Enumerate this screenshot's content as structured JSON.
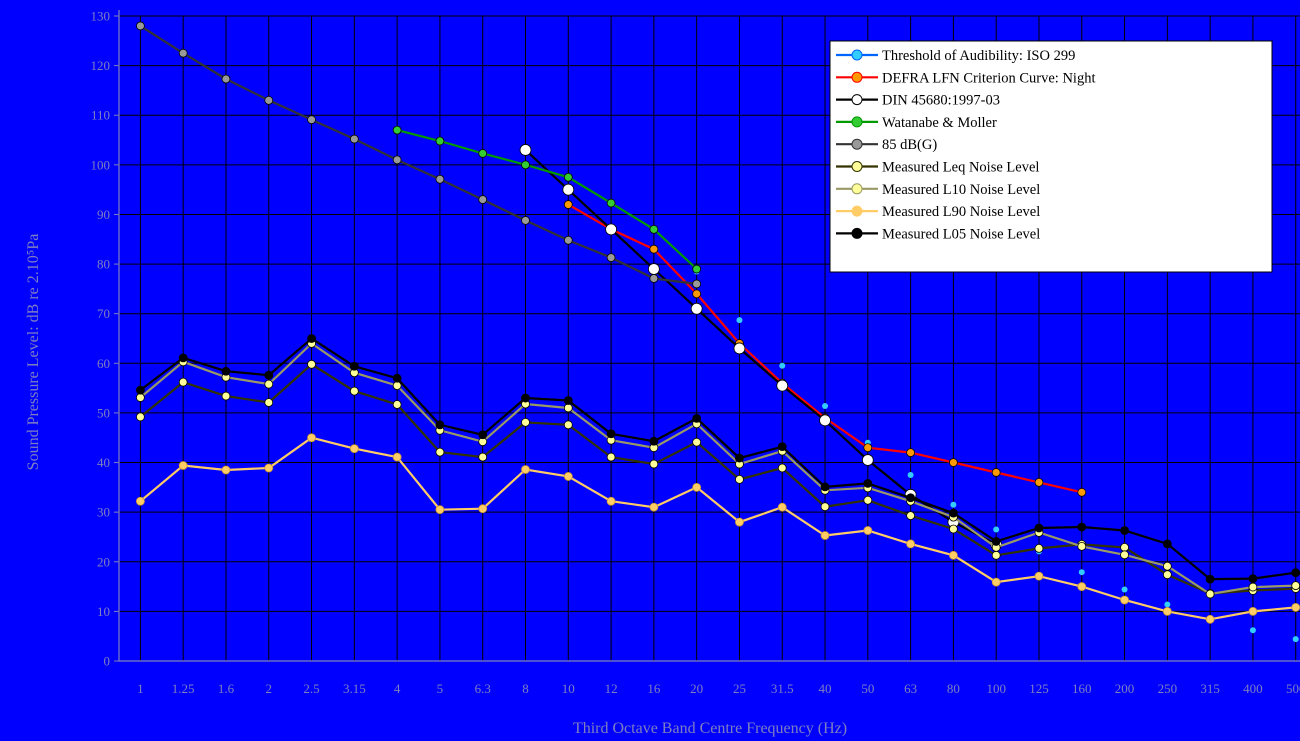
{
  "chart_data": {
    "type": "line",
    "title": "",
    "xlabel": "Third Octave Band Centre Frequency (Hz)",
    "ylabel": "Sound Pressure Level: dB re 2.10⁵Pa",
    "ylim": [
      0,
      130
    ],
    "yticks": [
      "0",
      "10",
      "20",
      "30",
      "40",
      "50",
      "60",
      "70",
      "80",
      "90",
      "100",
      "110",
      "120",
      "130"
    ],
    "categories": [
      "1",
      "1.25",
      "1.6",
      "2",
      "2.5",
      "3.15",
      "4",
      "5",
      "6.3",
      "8",
      "10",
      "12",
      "16",
      "20",
      "25",
      "31.5",
      "40",
      "50",
      "63",
      "80",
      "100",
      "125",
      "160",
      "200",
      "250",
      "315",
      "400",
      "500"
    ],
    "grid": true,
    "legend_position": "top-right",
    "series": [
      {
        "name": "Threshold of Audibility: ISO 299",
        "color": "#33ccff",
        "line": "#0066ff",
        "marker": "#33ccff",
        "show_line": false,
        "values": [
          null,
          null,
          null,
          null,
          null,
          null,
          null,
          null,
          null,
          null,
          null,
          null,
          null,
          78.5,
          68.7,
          59.5,
          51.4,
          44.0,
          37.5,
          31.5,
          26.5,
          22.1,
          17.9,
          14.4,
          11.4,
          8.6,
          6.2,
          4.4
        ]
      },
      {
        "name": "DEFRA LFN Criterion Curve: Night",
        "color": "#ff0000",
        "line": "#ff0000",
        "marker": "#ff9900",
        "values": [
          null,
          null,
          null,
          null,
          null,
          null,
          null,
          null,
          null,
          null,
          92,
          87,
          83,
          74,
          64,
          56,
          49,
          43,
          42,
          40,
          38,
          36,
          34,
          null,
          null,
          null,
          null,
          null
        ]
      },
      {
        "name": "DIN 45680:1997-03",
        "color": "#000000",
        "line": "#000000",
        "marker": "#ffffff",
        "marker_size": 5.5,
        "values": [
          null,
          null,
          null,
          null,
          null,
          null,
          null,
          null,
          null,
          103,
          95,
          87,
          79,
          71,
          63,
          55.5,
          48.5,
          40.5,
          33.5,
          28,
          23.5,
          null,
          null,
          null,
          null,
          null,
          null,
          null
        ]
      },
      {
        "name": "Watanabe & Moller",
        "color": "#009900",
        "line": "#009900",
        "marker": "#33cc33",
        "values": [
          null,
          null,
          null,
          null,
          null,
          null,
          107,
          104.8,
          102.3,
          100,
          97.5,
          92.3,
          87,
          79,
          null,
          null,
          null,
          null,
          null,
          null,
          null,
          null,
          null,
          null,
          null,
          null,
          null,
          null
        ]
      },
      {
        "name": "85 dB(G)",
        "color": "#333333",
        "line": "#333333",
        "marker": "#999999",
        "values": [
          128,
          122.5,
          117.3,
          113,
          109.1,
          105.2,
          101,
          97.1,
          93,
          88.8,
          84.8,
          81.3,
          77.1,
          76,
          null,
          null,
          null,
          null,
          null,
          null,
          null,
          null,
          null,
          null,
          null,
          null,
          null,
          null
        ]
      },
      {
        "name": "Measured Leq Noise Level",
        "color": "#333300",
        "line": "#333300",
        "marker": "#ffff99",
        "values": [
          49.2,
          56.2,
          53.4,
          52.1,
          59.8,
          54.4,
          51.7,
          42.1,
          41.1,
          48.1,
          47.6,
          41.1,
          39.7,
          44.1,
          36.6,
          38.9,
          31.1,
          32.4,
          29.3,
          26.6,
          21.3,
          22.7,
          23.5,
          22.9,
          17.4,
          13.6,
          14.2,
          14.6
        ]
      },
      {
        "name": "Measured L10 Noise Level",
        "color": "#999966",
        "line": "#999966",
        "marker": "#ffff99",
        "values": [
          53.1,
          60.3,
          57.2,
          55.8,
          64.0,
          58.1,
          55.5,
          46.5,
          44.2,
          51.8,
          51.0,
          44.5,
          43.0,
          47.8,
          39.7,
          42.3,
          34.4,
          34.9,
          32.2,
          29.0,
          22.9,
          25.9,
          23.1,
          21.4,
          19.1,
          13.5,
          14.9,
          15.2
        ]
      },
      {
        "name": "Measured L90 Noise Level",
        "color": "#ffcc66",
        "line": "#ffcc66",
        "marker": "#ffcc66",
        "values": [
          32.2,
          39.4,
          38.5,
          38.9,
          45.0,
          42.8,
          41.1,
          30.5,
          30.7,
          38.6,
          37.2,
          32.2,
          31.0,
          35.0,
          28.0,
          31.0,
          25.3,
          26.3,
          23.6,
          21.3,
          15.9,
          17.1,
          15.0,
          12.3,
          10.0,
          8.4,
          10.0,
          10.8
        ]
      },
      {
        "name": "Measured L05 Noise Level",
        "color": "#000000",
        "line": "#000000",
        "marker": "#000000",
        "values": [
          54.6,
          61.1,
          58.4,
          57.6,
          65.0,
          59.4,
          57.0,
          47.6,
          45.6,
          53.0,
          52.5,
          45.8,
          44.3,
          48.9,
          40.9,
          43.2,
          35.1,
          35.8,
          32.9,
          29.8,
          24.1,
          26.8,
          27.0,
          26.3,
          23.6,
          16.5,
          16.6,
          17.8
        ]
      }
    ]
  }
}
